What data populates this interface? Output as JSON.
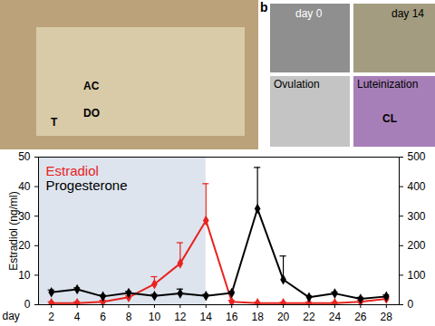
{
  "chart_data": {
    "type": "line",
    "annotations": [
      "T",
      "AC",
      "DO",
      "b",
      "day 0",
      "day 14",
      "Ovulation",
      "Luteinization",
      "CL"
    ],
    "x_label": "day",
    "y_label": "Estradiol (ng/ml)",
    "x": [
      2,
      4,
      6,
      8,
      10,
      12,
      14,
      16,
      18,
      20,
      22,
      24,
      26,
      28
    ],
    "xlim": [
      1,
      29
    ],
    "xticks": [
      2,
      4,
      6,
      8,
      10,
      12,
      14,
      16,
      18,
      20,
      22,
      24,
      26,
      28
    ],
    "ylim": [
      0,
      50
    ],
    "yticks": [
      0,
      10,
      20,
      30,
      40,
      50
    ],
    "y2lim": [
      0,
      500
    ],
    "y2ticks": [
      0,
      100,
      200,
      300,
      400,
      500
    ],
    "highlight": [
      1,
      14
    ],
    "legend": "top-left",
    "series": [
      {
        "name": "Estradiol",
        "color": "#e8231f",
        "marker": "diamond",
        "axis": "y",
        "values": [
          0.5,
          0.5,
          1,
          2.5,
          7,
          14,
          28.5,
          1,
          0.5,
          0.5,
          0.5,
          0.5,
          1,
          2
        ],
        "errors": [
          0.5,
          0.5,
          0.5,
          0.5,
          2.5,
          7,
          12.5,
          0.5,
          0.3,
          0.3,
          0.3,
          0.3,
          0.5,
          0.5
        ]
      },
      {
        "name": "Progesterone",
        "color": "#000000",
        "marker": "diamond",
        "axis": "y2",
        "values": [
          42,
          52,
          28,
          40,
          30,
          38,
          30,
          40,
          325,
          85,
          25,
          38,
          20,
          28
        ],
        "errors": [
          8,
          5,
          5,
          5,
          5,
          15,
          5,
          5,
          140,
          80,
          5,
          5,
          5,
          5
        ]
      }
    ]
  }
}
